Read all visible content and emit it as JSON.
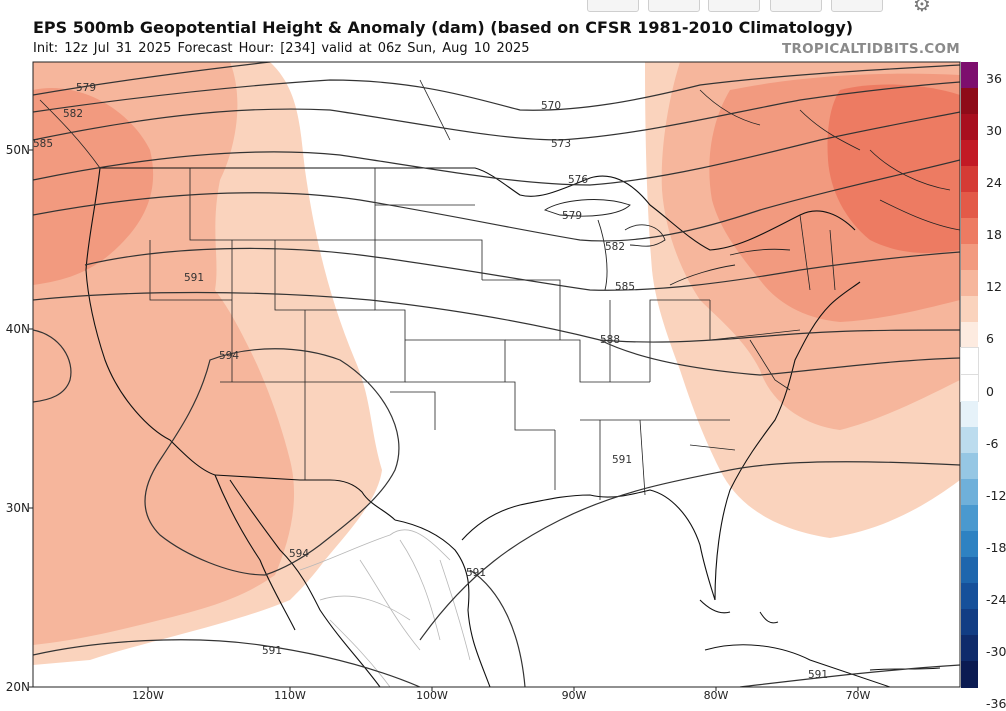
{
  "header": {
    "title": "EPS 500mb Geopotential Height & Anomaly (dam) (based on CFSR 1981-2010 Climatology)",
    "subtitle": "Init: 12z Jul 31 2025   Forecast Hour: [234]   valid at 06z Sun, Aug 10 2025",
    "site": "TROPICALTIDBITS.COM"
  },
  "map": {
    "lat_labels": [
      "50N",
      "40N",
      "30N",
      "20N"
    ],
    "lon_labels": [
      "120W",
      "110W",
      "100W",
      "90W",
      "80W",
      "70W"
    ],
    "contour_labels": [
      "579",
      "582",
      "585",
      "591",
      "594",
      "570",
      "573",
      "576",
      "579",
      "582",
      "585",
      "588",
      "591",
      "594",
      "591",
      "591",
      "591"
    ]
  },
  "colorbar": {
    "labels": [
      "36",
      "30",
      "24",
      "18",
      "12",
      "6",
      "0",
      "-6",
      "-12",
      "-18",
      "-24",
      "-30",
      "-36"
    ],
    "colors": [
      "#7d0e6e",
      "#8e0b19",
      "#a80f1f",
      "#c21a25",
      "#d53b35",
      "#e35a48",
      "#ed7b62",
      "#f29a7f",
      "#f6b69c",
      "#fad3bd",
      "#fdebe0",
      "#ffffff",
      "#ffffff",
      "#e6f2f9",
      "#bcdcee",
      "#96c7e4",
      "#6fb0da",
      "#4a99cf",
      "#2e82c2",
      "#1e66ad",
      "#16509a",
      "#123d84",
      "#0f2b6b",
      "#0b1b52"
    ]
  }
}
